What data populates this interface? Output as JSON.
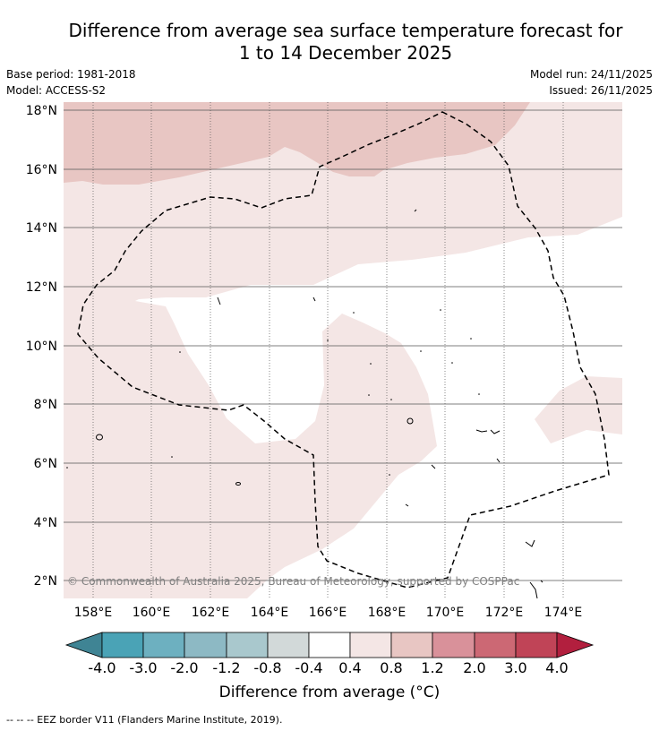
{
  "title": {
    "line1": "Difference from average sea surface temperature forecast for",
    "line2": "1 to 14 December 2025"
  },
  "meta": {
    "base_period": "Base period: 1981-2018",
    "model": "Model: ACCESS-S2",
    "model_run": "Model run: 24/11/2025",
    "issued": "Issued: 26/11/2025"
  },
  "map": {
    "lat_labels": [
      "18°N",
      "16°N",
      "14°N",
      "12°N",
      "10°N",
      "8°N",
      "6°N",
      "4°N",
      "2°N"
    ],
    "lon_labels": [
      "158°E",
      "160°E",
      "162°E",
      "164°E",
      "166°E",
      "168°E",
      "170°E",
      "172°E",
      "174°E"
    ],
    "copyright": "© Commonwealth of Australia 2025, Bureau of Meteorology, supported by COSPPac",
    "colors": {
      "anom_0_8_1_2": "#e8c6c3",
      "anom_0_4_0_8": "#f4e6e5",
      "anom_neutral": "#ffffff",
      "gridline": "#555555"
    }
  },
  "colorbar": {
    "tick_labels": [
      "-4.0",
      "-3.0",
      "-2.0",
      "-1.2",
      "-0.8",
      "-0.4",
      "0.4",
      "0.8",
      "1.2",
      "2.0",
      "3.0",
      "4.0"
    ],
    "colors": [
      "#3f8494",
      "#4aa3b6",
      "#6db0c0",
      "#8db9c4",
      "#a9c8cd",
      "#d2d9d9",
      "#ffffff",
      "#f4e6e5",
      "#e8c6c3",
      "#d9919a",
      "#cc6874",
      "#c04457",
      "#b21f3e"
    ],
    "label": "Difference from average (°C)"
  },
  "footnote": "--  --  -- EEZ border V11 (Flanders Marine Institute, 2019)."
}
